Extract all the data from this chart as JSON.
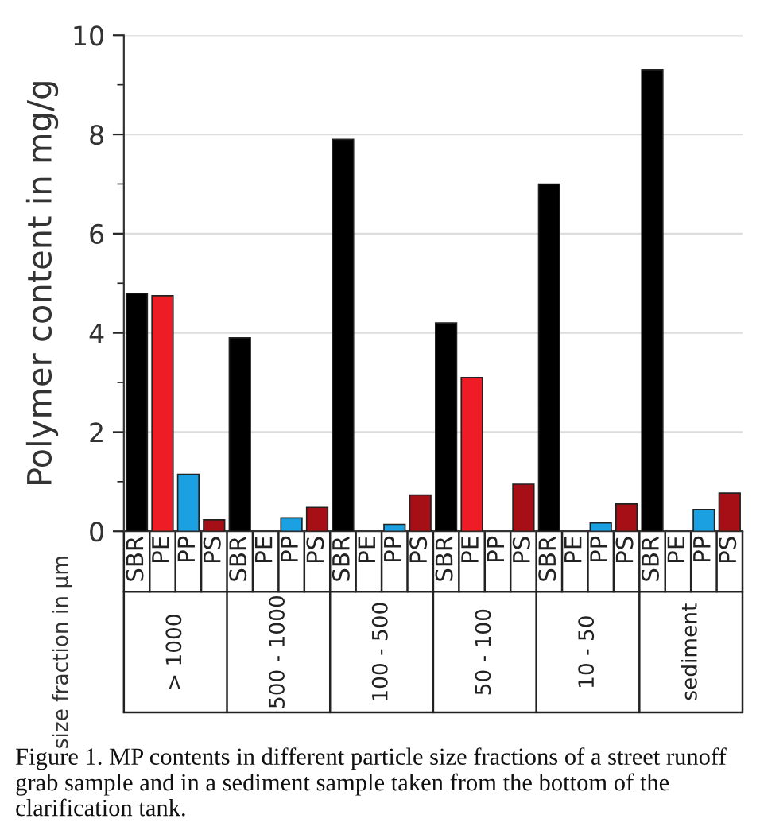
{
  "chart_data": {
    "type": "bar",
    "ylabel": "Polymer content in mg/g",
    "categories": [
      "SBR",
      "PE",
      "PP",
      "PS",
      "SBR",
      "PE",
      "PP",
      "PS",
      "SBR",
      "PE",
      "PP",
      "PS",
      "SBR",
      "PE",
      "PP",
      "PS",
      "SBR",
      "PE",
      "PP",
      "PS",
      "SBR",
      "PE",
      "PP",
      "PS"
    ],
    "values": [
      4.8,
      4.75,
      1.15,
      0.23,
      3.9,
      null,
      0.27,
      0.48,
      7.9,
      null,
      0.14,
      0.73,
      4.2,
      3.1,
      null,
      0.95,
      7.0,
      null,
      0.17,
      0.55,
      9.3,
      null,
      0.44,
      0.77
    ],
    "colors": [
      "#000000",
      "#ee1c25",
      "#1ba1e2",
      "#a50f15",
      "#000000",
      "#ee1c25",
      "#1ba1e2",
      "#a50f15",
      "#000000",
      "#ee1c25",
      "#1ba1e2",
      "#a50f15",
      "#000000",
      "#ee1c25",
      "#1ba1e2",
      "#a50f15",
      "#000000",
      "#ee1c25",
      "#1ba1e2",
      "#a50f15",
      "#000000",
      "#ee1c25",
      "#1ba1e2",
      "#a50f15"
    ],
    "ylim": [
      0,
      10
    ],
    "yticks": [
      0,
      {
        "value": 1,
        "label": null
      },
      2,
      {
        "value": 3,
        "label": null
      },
      4,
      {
        "value": 5,
        "label": null
      },
      6,
      {
        "value": 7,
        "label": null
      },
      8,
      {
        "value": 9,
        "label": null
      },
      10
    ],
    "grid": "y",
    "annotations": [
      "size fraction in µm",
      "> 1000",
      "500 - 1000",
      "100 - 500",
      "50 - 100",
      "10 - 50",
      "sediment",
      "Figure 1. MP contents in different particle size fractions of a street runoff grab sample and in a sediment sample taken from the bottom of the clarification tank."
    ]
  }
}
